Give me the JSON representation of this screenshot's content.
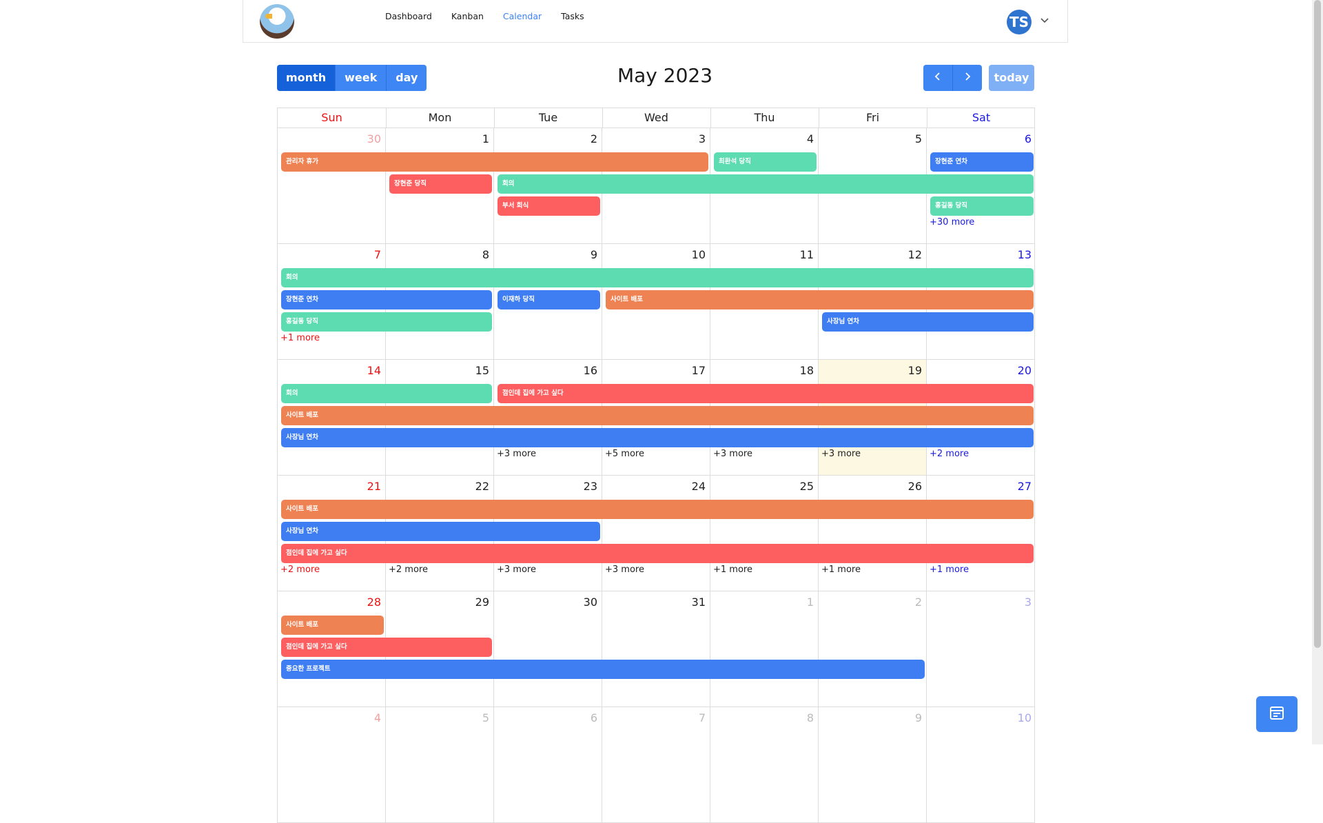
{
  "nav": {
    "links": [
      "Dashboard",
      "Kanban",
      "Calendar",
      "Tasks"
    ],
    "active": "Calendar",
    "avatar_initials": "TS"
  },
  "toolbar": {
    "views": [
      "month",
      "week",
      "day"
    ],
    "active_view": "month",
    "title": "May 2023",
    "today_label": "today"
  },
  "calendar": {
    "weekdays": [
      "Sun",
      "Mon",
      "Tue",
      "Wed",
      "Thu",
      "Fri",
      "Sat"
    ],
    "weeks": [
      {
        "days": [
          {
            "num": "30",
            "other": true
          },
          {
            "num": "1"
          },
          {
            "num": "2"
          },
          {
            "num": "3"
          },
          {
            "num": "4"
          },
          {
            "num": "5"
          },
          {
            "num": "6"
          }
        ],
        "events": [
          {
            "title": "관리자 휴가",
            "start": 0,
            "span": 4,
            "slot": 0,
            "color": "orange"
          },
          {
            "title": "최환석 당직",
            "start": 4,
            "span": 1,
            "slot": 0,
            "color": "green"
          },
          {
            "title": "장현준 연차",
            "start": 6,
            "span": 1,
            "slot": 0,
            "color": "blue"
          },
          {
            "title": "장현준 당직",
            "start": 1,
            "span": 1,
            "slot": 1,
            "color": "red"
          },
          {
            "title": "회의",
            "start": 2,
            "span": 5,
            "slot": 1,
            "color": "green"
          },
          {
            "title": "부서 회식",
            "start": 2,
            "span": 1,
            "slot": 2,
            "color": "red"
          },
          {
            "title": "홍길동 당직",
            "start": 6,
            "span": 1,
            "slot": 2,
            "color": "green"
          }
        ],
        "more": [
          {
            "day": 6,
            "label": "+30 more"
          }
        ]
      },
      {
        "days": [
          {
            "num": "7"
          },
          {
            "num": "8"
          },
          {
            "num": "9"
          },
          {
            "num": "10"
          },
          {
            "num": "11"
          },
          {
            "num": "12"
          },
          {
            "num": "13"
          }
        ],
        "events": [
          {
            "title": "회의",
            "start": 0,
            "span": 7,
            "slot": 0,
            "color": "green"
          },
          {
            "title": "장현준 연차",
            "start": 0,
            "span": 2,
            "slot": 1,
            "color": "blue"
          },
          {
            "title": "이재하 당직",
            "start": 2,
            "span": 1,
            "slot": 1,
            "color": "blue"
          },
          {
            "title": "사이트 배포",
            "start": 3,
            "span": 4,
            "slot": 1,
            "color": "orange"
          },
          {
            "title": "홍길동 당직",
            "start": 0,
            "span": 2,
            "slot": 2,
            "color": "green"
          },
          {
            "title": "사장님 연차",
            "start": 5,
            "span": 2,
            "slot": 2,
            "color": "blue"
          }
        ],
        "more": [
          {
            "day": 0,
            "label": "+1 more"
          }
        ]
      },
      {
        "days": [
          {
            "num": "14"
          },
          {
            "num": "15"
          },
          {
            "num": "16"
          },
          {
            "num": "17"
          },
          {
            "num": "18"
          },
          {
            "num": "19",
            "today": true
          },
          {
            "num": "20"
          }
        ],
        "events": [
          {
            "title": "회의",
            "start": 0,
            "span": 2,
            "slot": 0,
            "color": "green"
          },
          {
            "title": "점인데 집에 가고 싶다",
            "start": 2,
            "span": 5,
            "slot": 0,
            "color": "red"
          },
          {
            "title": "사이트 배포",
            "start": 0,
            "span": 7,
            "slot": 1,
            "color": "orange"
          },
          {
            "title": "사장님 연차",
            "start": 0,
            "span": 7,
            "slot": 2,
            "color": "blue"
          }
        ],
        "more": [
          {
            "day": 2,
            "label": "+3 more"
          },
          {
            "day": 3,
            "label": "+5 more"
          },
          {
            "day": 4,
            "label": "+3 more"
          },
          {
            "day": 5,
            "label": "+3 more"
          },
          {
            "day": 6,
            "label": "+2 more"
          }
        ]
      },
      {
        "days": [
          {
            "num": "21"
          },
          {
            "num": "22"
          },
          {
            "num": "23"
          },
          {
            "num": "24"
          },
          {
            "num": "25"
          },
          {
            "num": "26"
          },
          {
            "num": "27"
          }
        ],
        "events": [
          {
            "title": "사이트 배포",
            "start": 0,
            "span": 7,
            "slot": 0,
            "color": "orange"
          },
          {
            "title": "사장님 연차",
            "start": 0,
            "span": 3,
            "slot": 1,
            "color": "blue"
          },
          {
            "title": "점인데 집에 가고 싶다",
            "start": 0,
            "span": 7,
            "slot": 2,
            "color": "red"
          }
        ],
        "more": [
          {
            "day": 0,
            "label": "+2 more"
          },
          {
            "day": 1,
            "label": "+2 more"
          },
          {
            "day": 2,
            "label": "+3 more"
          },
          {
            "day": 3,
            "label": "+3 more"
          },
          {
            "day": 4,
            "label": "+1 more"
          },
          {
            "day": 5,
            "label": "+1 more"
          },
          {
            "day": 6,
            "label": "+1 more"
          }
        ]
      },
      {
        "days": [
          {
            "num": "28"
          },
          {
            "num": "29"
          },
          {
            "num": "30"
          },
          {
            "num": "31"
          },
          {
            "num": "1",
            "other": true
          },
          {
            "num": "2",
            "other": true
          },
          {
            "num": "3",
            "other": true
          }
        ],
        "events": [
          {
            "title": "사이트 배포",
            "start": 0,
            "span": 1,
            "slot": 0,
            "color": "orange"
          },
          {
            "title": "점인데 집에 가고 싶다",
            "start": 0,
            "span": 2,
            "slot": 1,
            "color": "red"
          },
          {
            "title": "중요한 프로젝트",
            "start": 0,
            "span": 6,
            "slot": 2,
            "color": "blue"
          }
        ],
        "more": []
      },
      {
        "days": [
          {
            "num": "4",
            "other": true
          },
          {
            "num": "5",
            "other": true
          },
          {
            "num": "6",
            "other": true
          },
          {
            "num": "7",
            "other": true
          },
          {
            "num": "8",
            "other": true
          },
          {
            "num": "9",
            "other": true
          },
          {
            "num": "10",
            "other": true
          }
        ],
        "events": [],
        "more": []
      }
    ]
  },
  "colors": {
    "orange": "#ef8253",
    "green": "#5ddbb1",
    "blue": "#3f7ef2",
    "red": "#fd5e5f",
    "accent": "#3f86f5",
    "today_bg": "#fdf8e1"
  },
  "icons": {
    "prev": "chevron-left-icon",
    "next": "chevron-right-icon",
    "caret": "chevron-down-icon",
    "fab": "calendar-icon"
  }
}
